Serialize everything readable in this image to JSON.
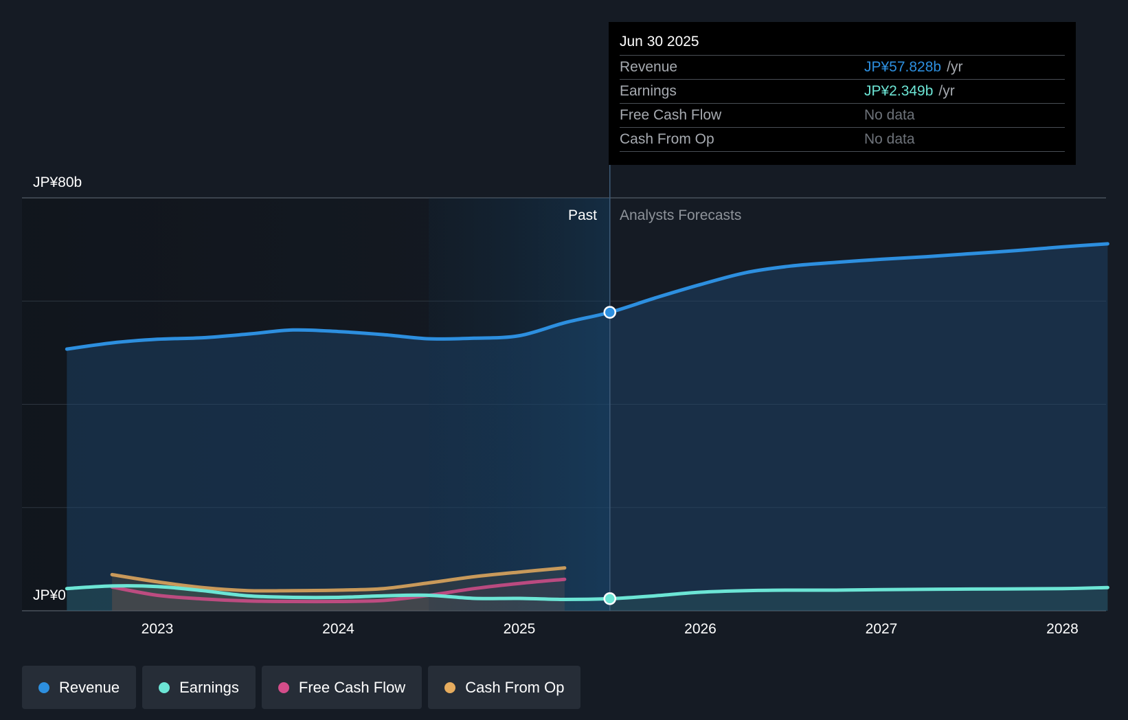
{
  "tooltip": {
    "date": "Jun 30 2025",
    "rows": [
      {
        "label": "Revenue",
        "value": "JP¥57.828b",
        "unit": "/yr",
        "color": "#2d8fdf"
      },
      {
        "label": "Earnings",
        "value": "JP¥2.349b",
        "unit": "/yr",
        "color": "#6ce5d5"
      },
      {
        "label": "Free Cash Flow",
        "value": "No data"
      },
      {
        "label": "Cash From Op",
        "value": "No data"
      }
    ]
  },
  "labels": {
    "past": "Past",
    "forecast": "Analysts Forecasts"
  },
  "legend": [
    {
      "label": "Revenue",
      "color": "#2d8fdf"
    },
    {
      "label": "Earnings",
      "color": "#6ce5d5"
    },
    {
      "label": "Free Cash Flow",
      "color": "#d44d8a"
    },
    {
      "label": "Cash From Op",
      "color": "#e6ac5e"
    }
  ],
  "chart_data": {
    "type": "line",
    "ylim": [
      0,
      80
    ],
    "y_ticks": [
      {
        "value": 0,
        "label": "JP¥0"
      },
      {
        "value": 80,
        "label": "JP¥80b"
      }
    ],
    "x_ticks": [
      2023,
      2024,
      2025,
      2026,
      2027,
      2028
    ],
    "divider_x": 2025.5,
    "highlight_start_x": 2024.5,
    "series": [
      {
        "name": "Revenue",
        "color": "#2d8fdf",
        "points": [
          [
            2022.5,
            50.7
          ],
          [
            2022.75,
            51.9
          ],
          [
            2023.0,
            52.6
          ],
          [
            2023.25,
            52.9
          ],
          [
            2023.5,
            53.6
          ],
          [
            2023.75,
            54.4
          ],
          [
            2024.0,
            54.1
          ],
          [
            2024.25,
            53.5
          ],
          [
            2024.5,
            52.7
          ],
          [
            2024.75,
            52.8
          ],
          [
            2025.0,
            53.3
          ],
          [
            2025.25,
            55.8
          ],
          [
            2025.5,
            57.828
          ],
          [
            2025.75,
            60.6
          ],
          [
            2026.0,
            63.2
          ],
          [
            2026.25,
            65.5
          ],
          [
            2026.5,
            66.8
          ],
          [
            2026.75,
            67.5
          ],
          [
            2027.0,
            68.1
          ],
          [
            2027.25,
            68.6
          ],
          [
            2027.5,
            69.2
          ],
          [
            2027.75,
            69.8
          ],
          [
            2028.0,
            70.5
          ],
          [
            2028.25,
            71.1
          ]
        ]
      },
      {
        "name": "Earnings",
        "color": "#6ce5d5",
        "points": [
          [
            2022.5,
            4.3
          ],
          [
            2022.75,
            4.8
          ],
          [
            2023.0,
            4.7
          ],
          [
            2023.25,
            3.9
          ],
          [
            2023.5,
            2.9
          ],
          [
            2023.75,
            2.6
          ],
          [
            2024.0,
            2.6
          ],
          [
            2024.25,
            2.9
          ],
          [
            2024.5,
            3.0
          ],
          [
            2024.75,
            2.4
          ],
          [
            2025.0,
            2.4
          ],
          [
            2025.25,
            2.2
          ],
          [
            2025.5,
            2.349
          ],
          [
            2025.75,
            2.9
          ],
          [
            2026.0,
            3.6
          ],
          [
            2026.25,
            3.9
          ],
          [
            2026.5,
            4.0
          ],
          [
            2026.75,
            4.0
          ],
          [
            2027.0,
            4.1
          ],
          [
            2027.5,
            4.2
          ],
          [
            2028.0,
            4.3
          ],
          [
            2028.25,
            4.5
          ]
        ]
      },
      {
        "name": "Free Cash Flow",
        "color": "#d44d8a",
        "points": [
          [
            2022.75,
            4.6
          ],
          [
            2023.0,
            3.0
          ],
          [
            2023.25,
            2.3
          ],
          [
            2023.5,
            1.9
          ],
          [
            2023.75,
            1.8
          ],
          [
            2024.0,
            1.8
          ],
          [
            2024.25,
            2.0
          ],
          [
            2024.5,
            3.0
          ],
          [
            2024.75,
            4.3
          ],
          [
            2025.0,
            5.3
          ],
          [
            2025.25,
            6.1
          ]
        ]
      },
      {
        "name": "Cash From Op",
        "color": "#e6ac5e",
        "points": [
          [
            2022.75,
            7.0
          ],
          [
            2023.0,
            5.6
          ],
          [
            2023.25,
            4.5
          ],
          [
            2023.5,
            3.9
          ],
          [
            2023.75,
            3.9
          ],
          [
            2024.0,
            4.0
          ],
          [
            2024.25,
            4.3
          ],
          [
            2024.5,
            5.4
          ],
          [
            2024.75,
            6.6
          ],
          [
            2025.0,
            7.5
          ],
          [
            2025.25,
            8.3
          ]
        ]
      }
    ]
  }
}
